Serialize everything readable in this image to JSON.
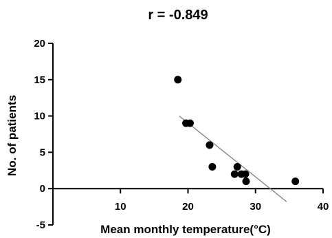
{
  "chart_data": {
    "type": "scatter",
    "title": "r = -0.849",
    "xlabel": "Mean monthly temperature(°C)",
    "ylabel": "No. of patients",
    "xlim": [
      0,
      40
    ],
    "ylim": [
      -5,
      20
    ],
    "xticks": [
      10,
      20,
      30,
      40
    ],
    "yticks": [
      -5,
      0,
      5,
      10,
      15,
      20
    ],
    "grid": false,
    "series": [
      {
        "points": [
          {
            "x": 18.5,
            "y": 15
          },
          {
            "x": 19.7,
            "y": 9
          },
          {
            "x": 20.3,
            "y": 9
          },
          {
            "x": 23.2,
            "y": 6
          },
          {
            "x": 23.6,
            "y": 3
          },
          {
            "x": 26.9,
            "y": 2
          },
          {
            "x": 27.3,
            "y": 3
          },
          {
            "x": 27.9,
            "y": 2
          },
          {
            "x": 28.5,
            "y": 2
          },
          {
            "x": 28.6,
            "y": 1
          },
          {
            "x": 35.9,
            "y": 1
          }
        ]
      }
    ],
    "regression_line": {
      "x": [
        18.7,
        34.6
      ],
      "y": [
        10.0,
        -1.8
      ]
    },
    "colors": {
      "points": "#000000",
      "regression_line": "#7f7f7f",
      "axes": "#000000"
    }
  }
}
